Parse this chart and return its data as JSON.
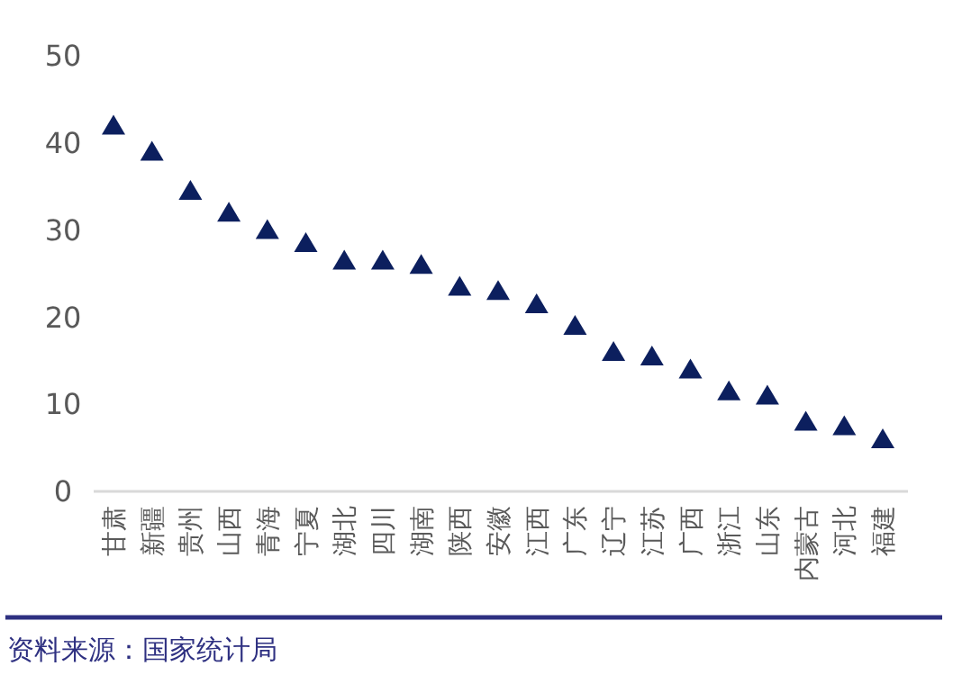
{
  "chart_data": {
    "type": "scatter",
    "marker": "triangle",
    "color": "#0c1f5e",
    "categories": [
      "甘肃",
      "新疆",
      "贵州",
      "山西",
      "青海",
      "宁夏",
      "湖北",
      "四川",
      "湖南",
      "陕西",
      "安徽",
      "江西",
      "广东",
      "辽宁",
      "江苏",
      "广西",
      "浙江",
      "山东",
      "内蒙古",
      "河北",
      "福建"
    ],
    "values": [
      42,
      39,
      34.5,
      32,
      30,
      28.5,
      26.5,
      26.5,
      26,
      23.5,
      23,
      21.5,
      19,
      16,
      15.5,
      14,
      11.5,
      11,
      8,
      7.5,
      6
    ],
    "ylim": [
      0,
      50
    ],
    "yticks": [
      0,
      10,
      20,
      30,
      40,
      50
    ],
    "grid": false,
    "annotations": [
      "资料来源：国家统计局"
    ]
  }
}
